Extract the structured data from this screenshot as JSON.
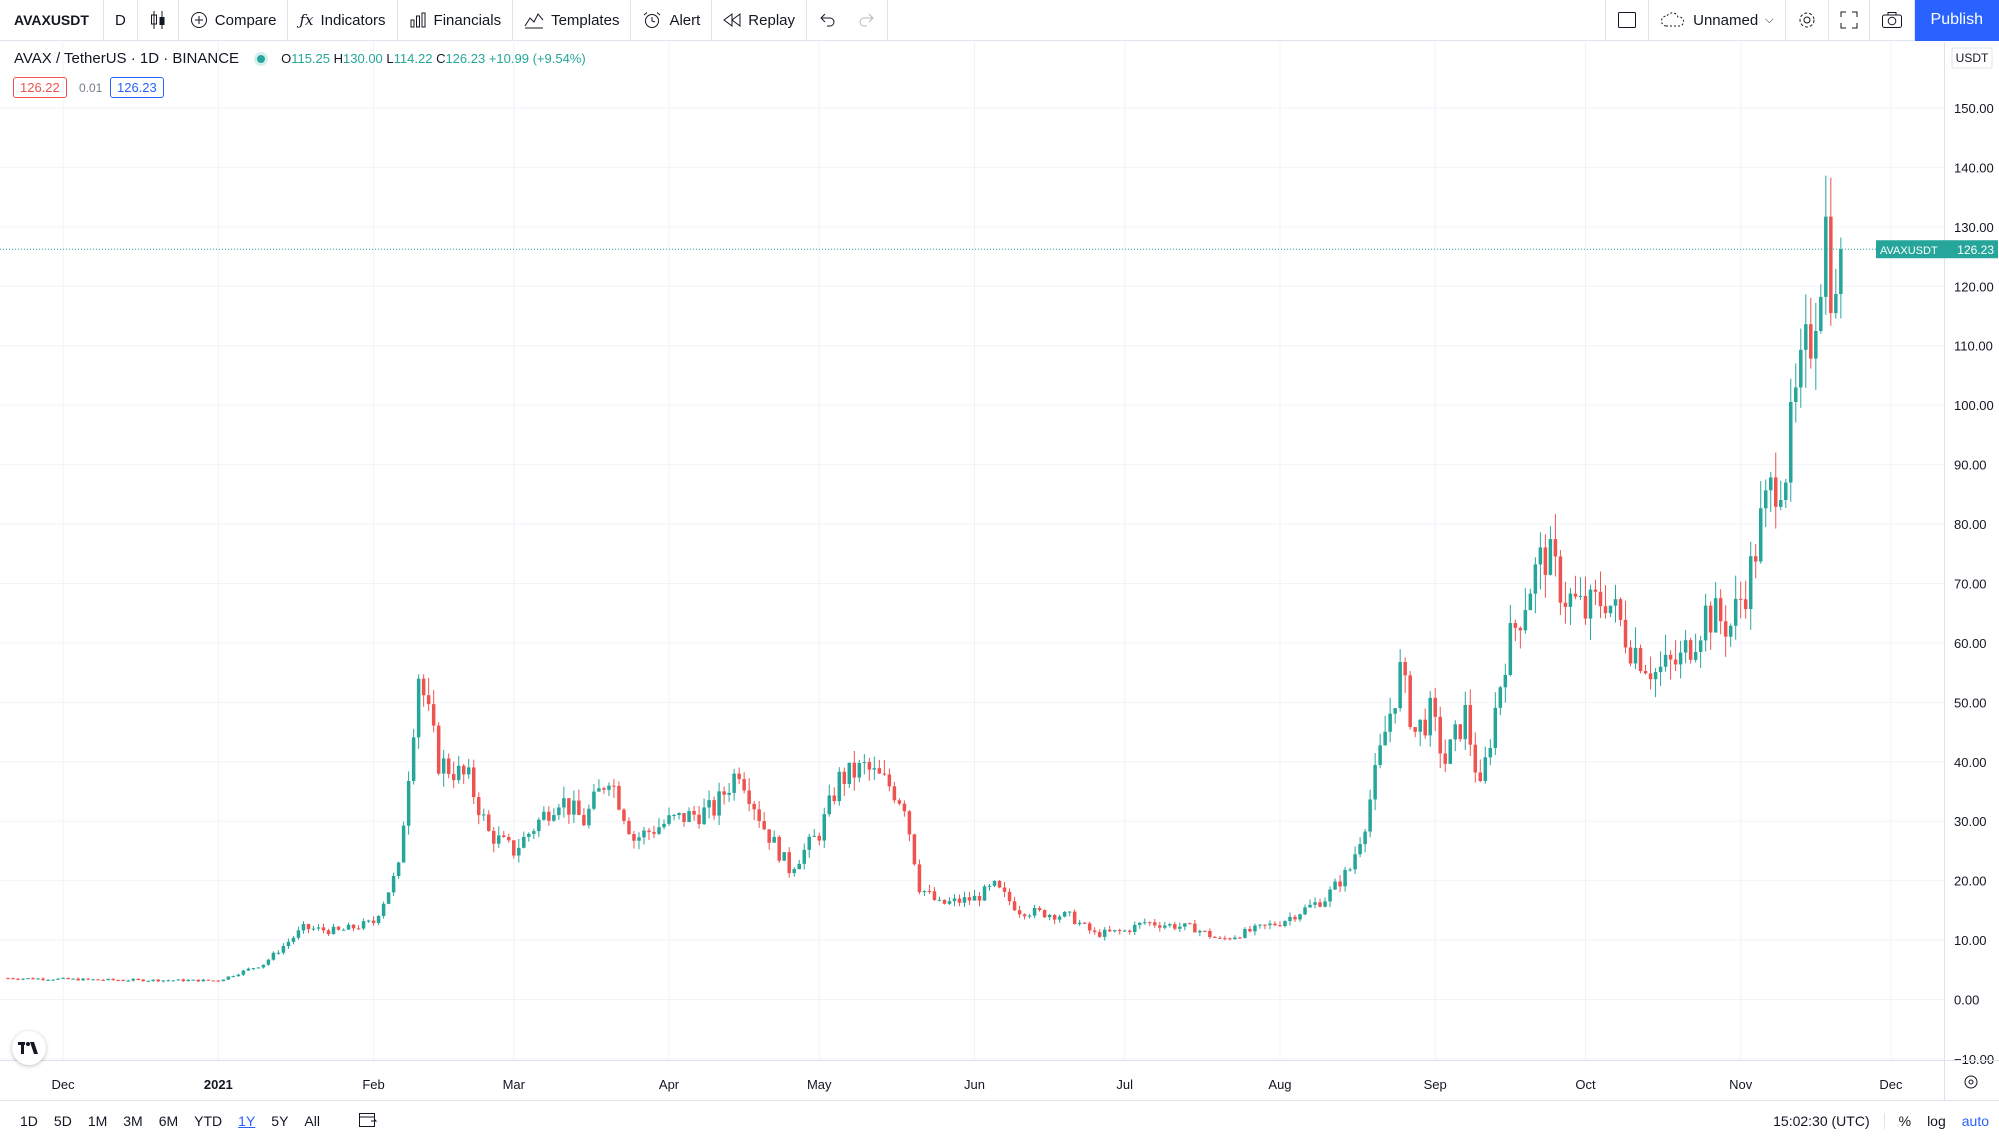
{
  "toolbar": {
    "symbol": "AVAXUSDT",
    "interval": "D",
    "compare": "Compare",
    "indicators": "Indicators",
    "financials": "Financials",
    "templates": "Templates",
    "alert": "Alert",
    "replay": "Replay",
    "layout_name": "Unnamed",
    "publish": "Publish"
  },
  "legend": {
    "title": "AVAX / TetherUS · 1D · BINANCE",
    "o_label": "O",
    "o": "115.25",
    "h_label": "H",
    "h": "130.00",
    "l_label": "L",
    "l": "114.22",
    "c_label": "C",
    "c": "126.23",
    "change": "+10.99 (+9.54%)",
    "bid": "126.22",
    "spread": "0.01",
    "ask": "126.23"
  },
  "bottom": {
    "ranges": [
      "1D",
      "5D",
      "1M",
      "3M",
      "6M",
      "YTD",
      "1Y",
      "5Y",
      "All"
    ],
    "active_range": "1Y",
    "clock": "15:02:30 (UTC)",
    "percent": "%",
    "log": "log",
    "auto": "auto"
  },
  "colors": {
    "up": "#26a69a",
    "down": "#ef5350",
    "accent": "#2962ff"
  },
  "chart_data": {
    "type": "candlestick",
    "title": "AVAX / TetherUS · 1D · BINANCE",
    "currency": "USDT",
    "last_price_label": "AVAXUSDT",
    "last_price": 126.23,
    "ylim": [
      -10,
      160
    ],
    "yticks": [
      -10,
      0,
      10,
      20,
      30,
      40,
      50,
      60,
      70,
      80,
      90,
      100,
      110,
      120,
      130,
      140,
      150
    ],
    "ytick_labels": [
      "−10.00",
      "0.00",
      "10.00",
      "20.00",
      "30.00",
      "40.00",
      "50.00",
      "60.00",
      "70.00",
      "80.00",
      "90.00",
      "100.00",
      "110.00",
      "120.00",
      "130.00",
      "140.00",
      "150.00"
    ],
    "xlim": [
      "2020-11-20",
      "2021-12-10"
    ],
    "xticks": [
      {
        "date": "2020-12-01",
        "label": "Dec"
      },
      {
        "date": "2021-01-01",
        "label": "2021"
      },
      {
        "date": "2021-02-01",
        "label": "Feb"
      },
      {
        "date": "2021-03-01",
        "label": "Mar"
      },
      {
        "date": "2021-04-01",
        "label": "Apr"
      },
      {
        "date": "2021-05-01",
        "label": "May"
      },
      {
        "date": "2021-06-01",
        "label": "Jun"
      },
      {
        "date": "2021-07-01",
        "label": "Jul"
      },
      {
        "date": "2021-08-01",
        "label": "Aug"
      },
      {
        "date": "2021-09-01",
        "label": "Sep"
      },
      {
        "date": "2021-10-01",
        "label": "Oct"
      },
      {
        "date": "2021-11-01",
        "label": "Nov"
      },
      {
        "date": "2021-12-01",
        "label": "Dec"
      }
    ],
    "price_anchors": [
      {
        "date": "2020-11-20",
        "close": 3.6
      },
      {
        "date": "2020-12-10",
        "close": 3.3
      },
      {
        "date": "2021-01-01",
        "close": 3.2
      },
      {
        "date": "2021-01-10",
        "close": 6.0
      },
      {
        "date": "2021-01-18",
        "close": 12.0
      },
      {
        "date": "2021-01-25",
        "close": 11.5
      },
      {
        "date": "2021-02-01",
        "close": 13.0
      },
      {
        "date": "2021-02-06",
        "close": 22.0
      },
      {
        "date": "2021-02-10",
        "close": 55.0
      },
      {
        "date": "2021-02-14",
        "close": 40.0
      },
      {
        "date": "2021-02-20",
        "close": 37.0
      },
      {
        "date": "2021-02-24",
        "close": 28.0
      },
      {
        "date": "2021-03-01",
        "close": 25.0
      },
      {
        "date": "2021-03-10",
        "close": 34.0
      },
      {
        "date": "2021-03-15",
        "close": 30.0
      },
      {
        "date": "2021-03-20",
        "close": 38.0
      },
      {
        "date": "2021-03-25",
        "close": 27.0
      },
      {
        "date": "2021-04-01",
        "close": 30.0
      },
      {
        "date": "2021-04-10",
        "close": 32.0
      },
      {
        "date": "2021-04-15",
        "close": 39.0
      },
      {
        "date": "2021-04-20",
        "close": 29.0
      },
      {
        "date": "2021-04-25",
        "close": 22.0
      },
      {
        "date": "2021-05-01",
        "close": 28.0
      },
      {
        "date": "2021-05-05",
        "close": 37.0
      },
      {
        "date": "2021-05-10",
        "close": 39.0
      },
      {
        "date": "2021-05-15",
        "close": 36.0
      },
      {
        "date": "2021-05-18",
        "close": 33.0
      },
      {
        "date": "2021-05-21",
        "close": 19.0
      },
      {
        "date": "2021-05-25",
        "close": 16.0
      },
      {
        "date": "2021-06-01",
        "close": 17.0
      },
      {
        "date": "2021-06-05",
        "close": 19.0
      },
      {
        "date": "2021-06-10",
        "close": 15.0
      },
      {
        "date": "2021-06-20",
        "close": 14.0
      },
      {
        "date": "2021-06-25",
        "close": 11.0
      },
      {
        "date": "2021-07-01",
        "close": 11.5
      },
      {
        "date": "2021-07-05",
        "close": 13.0
      },
      {
        "date": "2021-07-15",
        "close": 12.0
      },
      {
        "date": "2021-07-20",
        "close": 10.0
      },
      {
        "date": "2021-08-01",
        "close": 13.0
      },
      {
        "date": "2021-08-10",
        "close": 17.0
      },
      {
        "date": "2021-08-15",
        "close": 22.0
      },
      {
        "date": "2021-08-18",
        "close": 30.0
      },
      {
        "date": "2021-08-22",
        "close": 45.0
      },
      {
        "date": "2021-08-25",
        "close": 55.0
      },
      {
        "date": "2021-08-28",
        "close": 45.0
      },
      {
        "date": "2021-08-31",
        "close": 48.0
      },
      {
        "date": "2021-09-03",
        "close": 40.0
      },
      {
        "date": "2021-09-07",
        "close": 48.0
      },
      {
        "date": "2021-09-10",
        "close": 35.0
      },
      {
        "date": "2021-09-15",
        "close": 58.0
      },
      {
        "date": "2021-09-20",
        "close": 70.0
      },
      {
        "date": "2021-09-23",
        "close": 75.0
      },
      {
        "date": "2021-09-27",
        "close": 68.0
      },
      {
        "date": "2021-10-01",
        "close": 65.0
      },
      {
        "date": "2021-10-05",
        "close": 68.0
      },
      {
        "date": "2021-10-10",
        "close": 60.0
      },
      {
        "date": "2021-10-15",
        "close": 55.0
      },
      {
        "date": "2021-10-20",
        "close": 57.0
      },
      {
        "date": "2021-10-25",
        "close": 65.0
      },
      {
        "date": "2021-10-30",
        "close": 63.0
      },
      {
        "date": "2021-11-03",
        "close": 72.0
      },
      {
        "date": "2021-11-05",
        "close": 80.0
      },
      {
        "date": "2021-11-08",
        "close": 88.0
      },
      {
        "date": "2021-11-10",
        "close": 90.0
      },
      {
        "date": "2021-11-12",
        "close": 100.0
      },
      {
        "date": "2021-11-15",
        "close": 112.0
      },
      {
        "date": "2021-11-18",
        "close": 130.0
      },
      {
        "date": "2021-11-20",
        "close": 115.0
      },
      {
        "date": "2021-11-21",
        "close": 126.23
      }
    ]
  }
}
